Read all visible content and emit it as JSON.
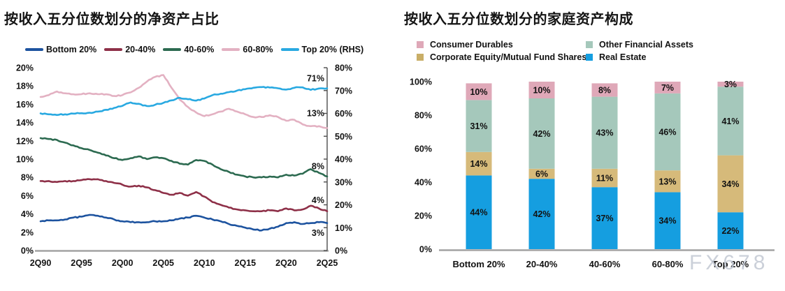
{
  "watermark": "FX678",
  "chart_data": [
    {
      "id": "net-worth-share-by-income-quintile",
      "type": "line",
      "title": "按收入五分位数划分的净资产占比",
      "x_ticks": [
        "2Q90",
        "2Q95",
        "2Q00",
        "2Q05",
        "2Q10",
        "2Q15",
        "2Q20",
        "2Q25"
      ],
      "x_start_year": 1990.5,
      "x_end_year": 2025.5,
      "left_ylim": [
        0,
        20
      ],
      "left_y_ticks": [
        "0%",
        "2%",
        "4%",
        "6%",
        "8%",
        "10%",
        "12%",
        "14%",
        "16%",
        "18%",
        "20%"
      ],
      "right_ylim": [
        0,
        80
      ],
      "right_y_ticks": [
        "0%",
        "10%",
        "20%",
        "30%",
        "40%",
        "50%",
        "60%",
        "70%",
        "80%"
      ],
      "grid": "off",
      "legend_position": "top",
      "series": [
        {
          "name": "Bottom 20%",
          "axis": "left",
          "color": "#1d539f",
          "values": [
            3.2,
            3.3,
            3.3,
            3.4,
            3.6,
            3.7,
            3.9,
            3.8,
            3.6,
            3.4,
            3.2,
            3.1,
            3.1,
            3.1,
            3.2,
            3.2,
            3.3,
            3.5,
            3.6,
            3.8,
            3.6,
            3.4,
            3.2,
            2.9,
            2.7,
            2.5,
            2.3,
            2.2,
            2.4,
            2.6,
            3.0,
            3.1,
            2.9,
            3.0,
            3.1,
            3.0
          ]
        },
        {
          "name": "20-40%",
          "axis": "left",
          "color": "#8e3048",
          "values": [
            7.6,
            7.6,
            7.5,
            7.6,
            7.6,
            7.7,
            7.8,
            7.8,
            7.6,
            7.4,
            7.2,
            7.0,
            7.1,
            6.9,
            6.6,
            6.3,
            6.1,
            6.3,
            6.0,
            6.4,
            5.9,
            5.3,
            5.0,
            4.7,
            4.5,
            4.4,
            4.3,
            4.3,
            4.4,
            4.3,
            4.6,
            4.4,
            4.5,
            4.9,
            4.6,
            4.3
          ]
        },
        {
          "name": "40-60%",
          "axis": "left",
          "color": "#2c6a50",
          "values": [
            12.3,
            12.2,
            12.1,
            11.8,
            11.5,
            11.2,
            11.0,
            10.7,
            10.4,
            10.1,
            9.9,
            10.1,
            10.3,
            10.0,
            10.2,
            10.1,
            9.8,
            9.5,
            9.4,
            9.9,
            9.8,
            9.4,
            8.9,
            8.6,
            8.3,
            8.1,
            8.0,
            8.0,
            8.1,
            8.0,
            8.3,
            8.2,
            8.4,
            8.9,
            8.5,
            8.1
          ]
        },
        {
          "name": "60-80%",
          "axis": "left",
          "color": "#e3b1c2",
          "values": [
            16.8,
            17.0,
            17.4,
            17.2,
            17.1,
            17.1,
            17.2,
            17.1,
            17.1,
            16.9,
            17.0,
            17.3,
            17.8,
            18.5,
            19.0,
            19.2,
            17.8,
            16.5,
            15.7,
            15.1,
            14.7,
            14.9,
            15.2,
            15.5,
            15.2,
            14.9,
            14.6,
            14.6,
            14.8,
            14.6,
            14.2,
            14.3,
            13.8,
            13.6,
            13.6,
            13.4
          ]
        },
        {
          "name": "Top 20% (RHS)",
          "axis": "right",
          "color": "#29a9e1",
          "values": [
            60.0,
            59.6,
            59.3,
            59.6,
            59.9,
            60.1,
            60.3,
            60.8,
            61.6,
            62.4,
            63.3,
            64.8,
            64.2,
            63.2,
            63.8,
            64.6,
            65.7,
            66.8,
            66.2,
            65.6,
            66.5,
            68.0,
            68.6,
            69.3,
            70.0,
            70.6,
            71.2,
            71.5,
            71.3,
            71.0,
            70.4,
            71.2,
            71.4,
            70.3,
            70.9,
            71.0
          ]
        }
      ],
      "end_labels": [
        {
          "text": "71%",
          "y_left_units": 18.8
        },
        {
          "text": "13%",
          "y_left_units": 15.0
        },
        {
          "text": "8%",
          "y_left_units": 9.2
        },
        {
          "text": "4%",
          "y_left_units": 5.5
        },
        {
          "text": "3%",
          "y_left_units": 1.9
        }
      ]
    },
    {
      "id": "household-asset-composition-by-income-quintile",
      "type": "stacked_bar",
      "title": "按收入五分位数划分的家庭资产构成",
      "categories": [
        "Bottom 20%",
        "20-40%",
        "40-60%",
        "60-80%",
        "Top 20%"
      ],
      "ylim": [
        0,
        100
      ],
      "y_ticks": [
        "0%",
        "20%",
        "40%",
        "60%",
        "80%",
        "100%"
      ],
      "grid": "off",
      "legend_position": "top",
      "stack_order_bottom_to_top": [
        "Real Estate",
        "Corporate Equity/Mutual Fund Shares",
        "Other Financial Assets",
        "Consumer Durables"
      ],
      "series": [
        {
          "name": "Real Estate",
          "color": "#159ee0",
          "values": [
            44,
            42,
            37,
            34,
            22
          ],
          "labels": [
            "44%",
            "42%",
            "37%",
            "34%",
            "22%"
          ]
        },
        {
          "name": "Corporate Equity/Mutual Fund Shares",
          "color": "#d6ba7a",
          "values": [
            14,
            6,
            11,
            13,
            34
          ],
          "labels": [
            "14%",
            "6%",
            "11%",
            "13%",
            "34%"
          ]
        },
        {
          "name": "Other Financial Assets",
          "color": "#a5c8bb",
          "values": [
            31,
            42,
            43,
            46,
            41
          ],
          "labels": [
            "31%",
            "42%",
            "43%",
            "46%",
            "41%"
          ]
        },
        {
          "name": "Consumer Durables",
          "color": "#dfa8b8",
          "values": [
            10,
            10,
            8,
            7,
            3
          ],
          "labels": [
            "10%",
            "10%",
            "8%",
            "7%",
            "3%"
          ]
        }
      ],
      "legend": [
        {
          "label": "Consumer Durables",
          "color": "#dfa8b8"
        },
        {
          "label": "Other Financial Assets",
          "color": "#a5c8bb"
        },
        {
          "label": "Corporate Equity/Mutual Fund Shares",
          "color": "#c9ae67"
        },
        {
          "label": "Real Estate",
          "color": "#159ee0"
        }
      ]
    }
  ]
}
